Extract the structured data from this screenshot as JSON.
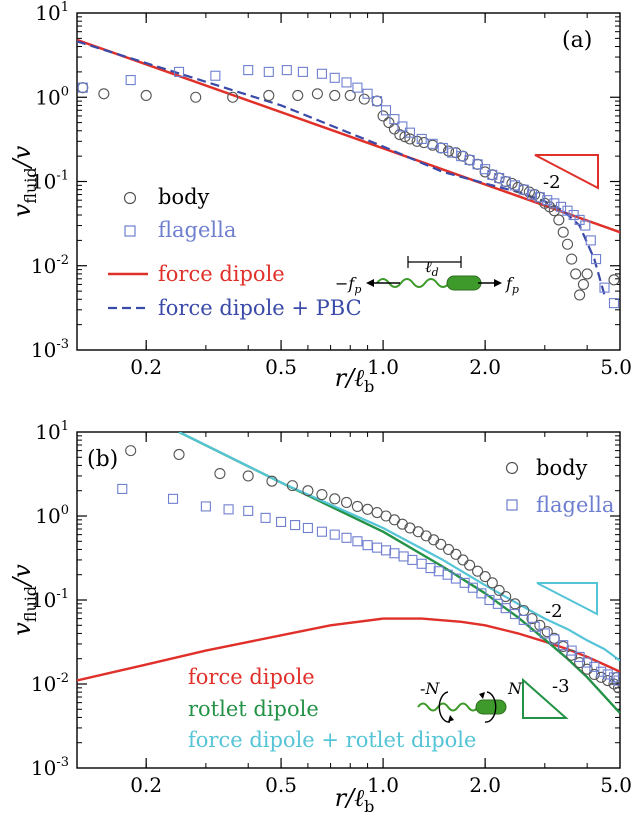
{
  "colors": {
    "body": "#555555",
    "flagella": "#6f7fd0",
    "force_dipole": "#e0302a",
    "force_dipole_pbc": "#3a4aa8",
    "rotlet_dipole": "#239246",
    "combined": "#55c4d6",
    "worm": "#3f9a2c"
  },
  "chart_data": [
    {
      "panel_label": "(a)",
      "type": "scatter",
      "xscale": "log",
      "yscale": "log",
      "xlim": [
        0.125,
        5.0
      ],
      "ylim": [
        0.001,
        10
      ],
      "xticks": [
        {
          "v": 0.2,
          "label": "0.2"
        },
        {
          "v": 0.5,
          "label": "0.5"
        },
        {
          "v": 1.0,
          "label": "1.0"
        },
        {
          "v": 2.0,
          "label": "2.0"
        },
        {
          "v": 5.0,
          "label": "5.0"
        }
      ],
      "ytick_labels": [
        {
          "base": "10",
          "exp": "1"
        },
        {
          "base": "10",
          "exp": "0"
        },
        {
          "base": "10",
          "exp": "-1"
        },
        {
          "base": "10",
          "exp": "-2"
        },
        {
          "base": "10",
          "exp": "-3"
        }
      ],
      "xlabel": {
        "main": "r/ℓ",
        "sub": "b"
      },
      "ylabel": {
        "main": "v",
        "sub": "fluid",
        "tail": "/v"
      },
      "series": [
        {
          "name": "body",
          "kind": "circle",
          "color_key": "body",
          "x": [
            0.13,
            0.15,
            0.2,
            0.28,
            0.36,
            0.46,
            0.56,
            0.64,
            0.72,
            0.8,
            0.88,
            0.96,
            1.0,
            1.04,
            1.08,
            1.12,
            1.16,
            1.2,
            1.26,
            1.32,
            1.4,
            1.48,
            1.56,
            1.64,
            1.72,
            1.8,
            1.9,
            2.0,
            2.1,
            2.2,
            2.3,
            2.4,
            2.5,
            2.6,
            2.7,
            2.8,
            2.9,
            3.0,
            3.1,
            3.2,
            3.3,
            3.4,
            3.5,
            3.6,
            3.7,
            3.8,
            3.9,
            4.0,
            4.8
          ],
          "y": [
            1.3,
            1.1,
            1.05,
            1.0,
            1.0,
            1.05,
            1.05,
            1.1,
            1.05,
            1.05,
            0.95,
            0.9,
            0.6,
            0.5,
            0.42,
            0.36,
            0.34,
            0.32,
            0.3,
            0.29,
            0.27,
            0.25,
            0.23,
            0.22,
            0.2,
            0.18,
            0.16,
            0.13,
            0.12,
            0.11,
            0.1,
            0.095,
            0.085,
            0.08,
            0.075,
            0.07,
            0.065,
            0.055,
            0.05,
            0.045,
            0.035,
            0.025,
            0.018,
            0.012,
            0.008,
            0.0045,
            0.006,
            0.008,
            0.0068
          ]
        },
        {
          "name": "flagella",
          "kind": "square",
          "color_key": "flagella",
          "x": [
            0.13,
            0.18,
            0.25,
            0.32,
            0.4,
            0.46,
            0.52,
            0.58,
            0.66,
            0.72,
            0.78,
            0.84,
            0.9,
            0.96,
            1.02,
            1.08,
            1.14,
            1.2,
            1.3,
            1.4,
            1.5,
            1.6,
            1.7,
            1.8,
            1.9,
            2.0,
            2.1,
            2.2,
            2.3,
            2.45,
            2.6,
            2.75,
            2.9,
            3.05,
            3.2,
            3.35,
            3.5,
            3.65,
            3.8,
            3.95,
            4.1,
            4.25,
            4.5,
            4.8
          ],
          "y": [
            1.3,
            1.6,
            2.0,
            1.8,
            2.1,
            2.0,
            2.1,
            2.0,
            1.9,
            1.7,
            1.5,
            1.3,
            1.1,
            0.9,
            0.7,
            0.55,
            0.45,
            0.38,
            0.32,
            0.28,
            0.25,
            0.22,
            0.2,
            0.18,
            0.16,
            0.14,
            0.12,
            0.11,
            0.1,
            0.09,
            0.08,
            0.07,
            0.065,
            0.06,
            0.055,
            0.05,
            0.045,
            0.04,
            0.035,
            0.03,
            0.02,
            0.012,
            0.0055,
            0.0036
          ]
        }
      ],
      "lines": [
        {
          "name": "force dipole",
          "color_key": "force_dipole",
          "dash": "",
          "width": 2.5,
          "x": [
            0.125,
            5.0
          ],
          "y": [
            4.8,
            0.025
          ]
        },
        {
          "name": "force dipole + PBC",
          "color_key": "force_dipole_pbc",
          "dash": "9 5",
          "width": 2.2,
          "x": [
            0.125,
            0.5,
            1.0,
            1.5,
            2.0,
            2.5,
            3.0,
            3.4,
            3.8,
            4.2,
            4.5
          ],
          "y": [
            4.6,
            0.8,
            0.26,
            0.13,
            0.095,
            0.075,
            0.058,
            0.045,
            0.03,
            0.012,
            0.0045
          ]
        }
      ],
      "legend": [
        {
          "label": "body",
          "kind": "circle",
          "color_key": "body"
        },
        {
          "label": "flagella",
          "kind": "square",
          "color_key": "flagella"
        },
        {
          "label": "force dipole",
          "kind": "line",
          "color_key": "force_dipole"
        },
        {
          "label": "force dipole + PBC",
          "kind": "dash",
          "color_key": "force_dipole_pbc"
        }
      ],
      "slope_triangles": [
        {
          "label": "-2",
          "color_key": "force_dipole"
        }
      ],
      "inset_labels": {
        "left_force": "−f",
        "left_sub": "p",
        "gap": "ℓ",
        "gap_sub": "d",
        "right_force": "f",
        "right_sub": "p"
      }
    },
    {
      "panel_label": "(b)",
      "type": "scatter",
      "xscale": "log",
      "yscale": "log",
      "xlim": [
        0.125,
        5.0
      ],
      "ylim": [
        0.001,
        10
      ],
      "xticks": [
        {
          "v": 0.2,
          "label": "0.2"
        },
        {
          "v": 0.5,
          "label": "0.5"
        },
        {
          "v": 1.0,
          "label": "1.0"
        },
        {
          "v": 2.0,
          "label": "2.0"
        },
        {
          "v": 5.0,
          "label": "5.0"
        }
      ],
      "ytick_labels": [
        {
          "base": "10",
          "exp": "1"
        },
        {
          "base": "10",
          "exp": "0"
        },
        {
          "base": "10",
          "exp": "-1"
        },
        {
          "base": "10",
          "exp": "-2"
        },
        {
          "base": "10",
          "exp": "-3"
        }
      ],
      "xlabel": {
        "main": "r/ℓ",
        "sub": "b"
      },
      "ylabel": {
        "main": "v",
        "sub": "fluid",
        "tail": "/v"
      },
      "series": [
        {
          "name": "body",
          "kind": "circle",
          "color_key": "body",
          "x": [
            0.18,
            0.25,
            0.33,
            0.4,
            0.47,
            0.54,
            0.6,
            0.66,
            0.72,
            0.78,
            0.84,
            0.9,
            0.96,
            1.02,
            1.08,
            1.14,
            1.2,
            1.27,
            1.34,
            1.41,
            1.48,
            1.56,
            1.64,
            1.72,
            1.8,
            1.9,
            2.0,
            2.1,
            2.2,
            2.3,
            2.45,
            2.6,
            2.75,
            2.9,
            3.05,
            3.2,
            3.4,
            3.6,
            3.8,
            4.0,
            4.2,
            4.4,
            4.6,
            4.8,
            4.9,
            4.95
          ],
          "y": [
            6.0,
            5.4,
            3.2,
            3.0,
            2.6,
            2.3,
            2.0,
            1.8,
            1.6,
            1.45,
            1.3,
            1.2,
            1.1,
            1.0,
            0.9,
            0.8,
            0.72,
            0.65,
            0.58,
            0.52,
            0.46,
            0.4,
            0.35,
            0.3,
            0.26,
            0.22,
            0.19,
            0.16,
            0.13,
            0.11,
            0.09,
            0.075,
            0.06,
            0.05,
            0.042,
            0.035,
            0.028,
            0.022,
            0.018,
            0.015,
            0.013,
            0.012,
            0.011,
            0.01,
            0.012,
            0.009
          ]
        },
        {
          "name": "flagella",
          "kind": "square",
          "color_key": "flagella",
          "x": [
            0.17,
            0.24,
            0.3,
            0.35,
            0.4,
            0.45,
            0.5,
            0.55,
            0.6,
            0.66,
            0.72,
            0.78,
            0.84,
            0.9,
            0.96,
            1.02,
            1.08,
            1.15,
            1.22,
            1.3,
            1.38,
            1.46,
            1.55,
            1.64,
            1.74,
            1.84,
            1.95,
            2.06,
            2.18,
            2.3,
            2.45,
            2.6,
            2.8,
            3.0,
            3.2,
            3.4,
            3.6,
            3.8,
            4.0,
            4.2,
            4.4,
            4.6,
            4.8,
            4.95
          ],
          "y": [
            2.1,
            1.6,
            1.3,
            1.2,
            1.15,
            0.95,
            0.85,
            0.78,
            0.72,
            0.65,
            0.6,
            0.55,
            0.5,
            0.45,
            0.42,
            0.39,
            0.36,
            0.33,
            0.3,
            0.27,
            0.24,
            0.22,
            0.2,
            0.18,
            0.16,
            0.14,
            0.12,
            0.1,
            0.09,
            0.08,
            0.068,
            0.058,
            0.048,
            0.04,
            0.034,
            0.029,
            0.025,
            0.021,
            0.018,
            0.016,
            0.014,
            0.013,
            0.012,
            0.011
          ]
        }
      ],
      "lines": [
        {
          "name": "force dipole",
          "color_key": "force_dipole",
          "dash": "",
          "width": 2.4,
          "x": [
            0.125,
            0.2,
            0.3,
            0.5,
            0.7,
            1.0,
            1.3,
            1.7,
            2.0,
            2.5,
            3.0,
            3.5,
            4.0,
            4.5,
            5.0
          ],
          "y": [
            0.011,
            0.017,
            0.025,
            0.038,
            0.05,
            0.06,
            0.06,
            0.055,
            0.05,
            0.04,
            0.032,
            0.026,
            0.021,
            0.017,
            0.014
          ]
        },
        {
          "name": "rotlet dipole",
          "color_key": "rotlet_dipole",
          "dash": "",
          "width": 2.4,
          "x": [
            0.25,
            0.5,
            1.0,
            1.5,
            2.0,
            2.5,
            3.0,
            3.5,
            4.0,
            5.0
          ],
          "y": [
            10.0,
            2.5,
            0.65,
            0.25,
            0.12,
            0.062,
            0.034,
            0.02,
            0.012,
            0.0045
          ]
        },
        {
          "name": "force dipole + rotlet dipole",
          "color_key": "combined",
          "dash": "",
          "width": 2.2,
          "x": [
            0.25,
            0.5,
            1.0,
            1.5,
            2.0,
            2.5,
            3.0,
            3.5,
            4.0,
            4.5,
            5.0
          ],
          "y": [
            10.0,
            2.5,
            0.72,
            0.3,
            0.15,
            0.09,
            0.06,
            0.045,
            0.033,
            0.026,
            0.019
          ]
        }
      ],
      "legend": [
        {
          "label": "body",
          "kind": "circle",
          "color_key": "body"
        },
        {
          "label": "flagella",
          "kind": "square",
          "color_key": "flagella"
        },
        {
          "label": "force dipole",
          "kind": "text",
          "color_key": "force_dipole"
        },
        {
          "label": "rotlet dipole",
          "kind": "text",
          "color_key": "rotlet_dipole"
        },
        {
          "label": "force dipole + rotlet dipole",
          "kind": "text",
          "color_key": "combined"
        }
      ],
      "slope_triangles": [
        {
          "label": "-2",
          "color_key": "combined"
        },
        {
          "label": "-3",
          "color_key": "rotlet_dipole"
        }
      ],
      "inset_labels": {
        "left_torque": "-N",
        "right_torque": "N"
      }
    }
  ]
}
